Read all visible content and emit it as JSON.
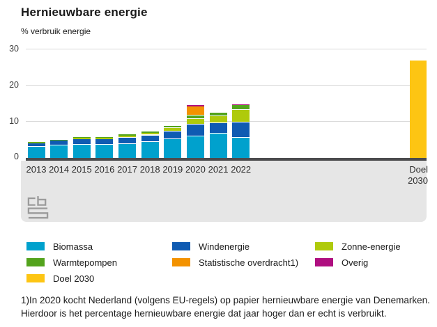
{
  "title": "Hernieuwbare energie",
  "y_axis_unit": "% verbruik energie",
  "axis": {
    "yticks": [
      "30",
      "20",
      "10",
      "0"
    ]
  },
  "doel_category_label": "Doel 2030",
  "chart_data": {
    "type": "bar",
    "stacked": true,
    "title": "Hernieuwbare energie",
    "ylabel": "% verbruik energie",
    "xlabel": "",
    "ylim": [
      0,
      30
    ],
    "yticks": [
      0,
      10,
      20,
      30
    ],
    "grid": true,
    "legend_position": "bottom",
    "categories": [
      "2013",
      "2014",
      "2015",
      "2016",
      "2017",
      "2018",
      "2019",
      "2020",
      "2021",
      "2022",
      "Doel 2030"
    ],
    "series": [
      {
        "name": "Biomassa",
        "color": "#00a1cd",
        "values": [
          3.2,
          3.7,
          3.9,
          3.8,
          4.1,
          4.6,
          5.3,
          6.2,
          6.9,
          5.7,
          0
        ]
      },
      {
        "name": "Windenergie",
        "color": "#0f5bb2",
        "values": [
          1.1,
          1.2,
          1.4,
          1.5,
          1.7,
          1.8,
          2.1,
          3.2,
          2.8,
          4.2,
          0
        ]
      },
      {
        "name": "Zonne-energie",
        "color": "#afca0b",
        "values": [
          0.1,
          0.2,
          0.4,
          0.4,
          0.5,
          0.6,
          1.0,
          1.4,
          2.0,
          3.4,
          0
        ]
      },
      {
        "name": "Warmtepompen",
        "color": "#53a31d",
        "values": [
          0.1,
          0.1,
          0.2,
          0.2,
          0.3,
          0.4,
          0.5,
          1.1,
          0.9,
          1.4,
          0
        ]
      },
      {
        "name": "Statistische overdracht1)",
        "color": "#f39200",
        "values": [
          0,
          0,
          0,
          0,
          0,
          0,
          0,
          2.4,
          0,
          0,
          0
        ]
      },
      {
        "name": "Overig",
        "color": "#af0e80",
        "values": [
          0,
          0,
          0,
          0,
          0,
          0,
          0,
          0.4,
          0,
          0.3,
          0
        ]
      },
      {
        "name": "Doel 2030",
        "color": "#fdc513",
        "values": [
          0,
          0,
          0,
          0,
          0,
          0,
          0,
          0,
          0,
          0,
          27
        ]
      }
    ]
  },
  "footnote": {
    "line1": "1)In 2020 kocht Nederland (volgens EU-regels) op papier hernieuwbare energie van Denemarken.",
    "line2": "Hierdoor is het percentage hernieuwbare energie dat jaar hoger dan er echt is verbruikt."
  }
}
